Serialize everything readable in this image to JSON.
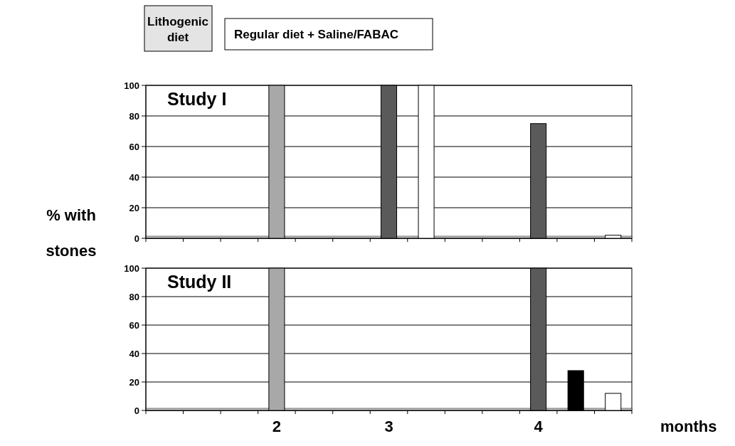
{
  "chart_data": [
    {
      "type": "bar",
      "title": "Study I",
      "ylabel": "% with stones",
      "categories": [
        null,
        null,
        null,
        null,
        null,
        null,
        null,
        null,
        null,
        null,
        null,
        null,
        null
      ],
      "values": [
        0,
        0,
        0,
        100,
        0,
        0,
        100,
        100,
        0,
        0,
        75,
        0,
        2
      ],
      "colors": [
        "#a8a8a8",
        "#a8a8a8",
        "#a8a8a8",
        "#a8a8a8",
        "#a8a8a8",
        "#a8a8a8",
        "#5a5a5a",
        "#ffffff",
        "#a8a8a8",
        "#a8a8a8",
        "#5a5a5a",
        "#a8a8a8",
        "#ffffff"
      ],
      "ylim": [
        0,
        100
      ],
      "yticks": [
        0,
        20,
        40,
        60,
        80,
        100
      ],
      "grid": "y",
      "annotations": [
        "Lithogenic diet",
        "Regular diet + Saline/FABAC"
      ]
    },
    {
      "type": "bar",
      "title": "Study II",
      "xlabel": "months",
      "categories": [
        null,
        null,
        null,
        "2",
        null,
        null,
        "3",
        null,
        null,
        null,
        "4",
        null,
        null
      ],
      "values": [
        0,
        0,
        0,
        100,
        0,
        0,
        0,
        0,
        0,
        0,
        100,
        28,
        12
      ],
      "colors": [
        "#a8a8a8",
        "#a8a8a8",
        "#a8a8a8",
        "#a8a8a8",
        "#a8a8a8",
        "#a8a8a8",
        "#a8a8a8",
        "#a8a8a8",
        "#a8a8a8",
        "#a8a8a8",
        "#5a5a5a",
        "#000000",
        "#ffffff"
      ],
      "ylim": [
        0,
        100
      ],
      "yticks": [
        0,
        20,
        40,
        60,
        80,
        100
      ],
      "grid": "y"
    }
  ]
}
